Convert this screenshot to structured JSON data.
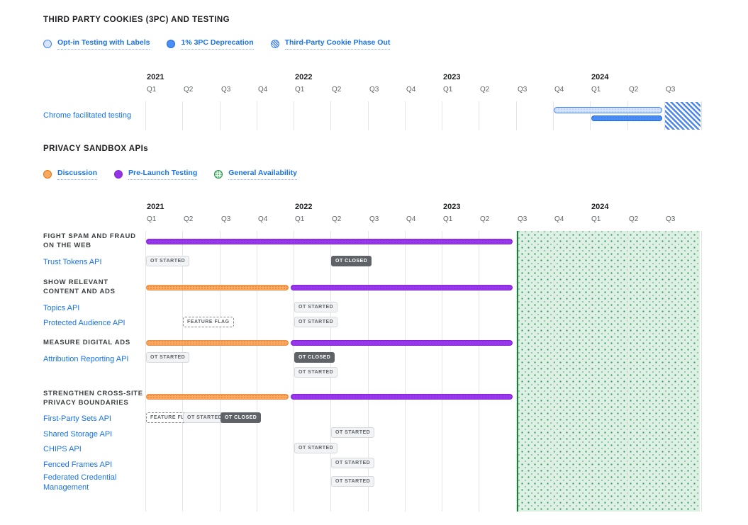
{
  "section1": {
    "title": "THIRD PARTY COOKIES (3PC) AND TESTING",
    "legend": [
      {
        "label": "Opt-in Testing with Labels",
        "style": "outline-blue"
      },
      {
        "label": "1% 3PC Deprecation",
        "style": "solid-blue"
      },
      {
        "label": "Third-Party Cookie Phase Out",
        "style": "hatched-blue"
      }
    ]
  },
  "section2": {
    "title": "PRIVACY SANDBOX APIs",
    "legend": [
      {
        "label": "Discussion",
        "style": "outline-orange"
      },
      {
        "label": "Pre-Launch Testing",
        "style": "solid-purple"
      },
      {
        "label": "General Availability",
        "style": "dotted-green"
      }
    ]
  },
  "colors": {
    "link_blue": "#1a73e8",
    "bar_blue": "#4285f4",
    "bar_light_blue": "#d6e4fc",
    "bar_orange": "#e8710a",
    "bar_purple": "#9334e6",
    "ga_green": "#188038",
    "badge_gray_bg": "#f1f3f4",
    "badge_dark_bg": "#5f6368",
    "text_dark": "#202124",
    "text_gray": "#5f6368"
  },
  "chart_data": [
    {
      "type": "gantt",
      "title": "THIRD PARTY COOKIES (3PC) AND TESTING",
      "x": {
        "unit": "quarter",
        "range": [
          "2021 Q1",
          "2024 Q3"
        ],
        "years": [
          {
            "label": "2021",
            "quarters": [
              "Q1",
              "Q2",
              "Q3",
              "Q4"
            ]
          },
          {
            "label": "2022",
            "quarters": [
              "Q1",
              "Q2",
              "Q3",
              "Q4"
            ]
          },
          {
            "label": "2023",
            "quarters": [
              "Q1",
              "Q2",
              "Q3",
              "Q4"
            ]
          },
          {
            "label": "2024",
            "quarters": [
              "Q1",
              "Q2",
              "Q3"
            ]
          }
        ]
      },
      "rows": [
        {
          "label": "Chrome facilitated testing",
          "bars": [
            {
              "series": "Opt-in Testing with Labels",
              "start": "2023 Q4",
              "end": "2024 Q2",
              "style": "outline-blue"
            },
            {
              "series": "1% 3PC Deprecation",
              "start": "2024 Q1",
              "end": "2024 Q2",
              "style": "solid-blue"
            },
            {
              "series": "Third-Party Cookie Phase Out",
              "start": "2024 Q3",
              "end": "2024 Q3",
              "style": "hatched-blue"
            }
          ]
        }
      ]
    },
    {
      "type": "gantt",
      "title": "PRIVACY SANDBOX APIs",
      "x": {
        "unit": "quarter",
        "range": [
          "2021 Q1",
          "2024 Q3"
        ],
        "years": [
          {
            "label": "2021",
            "quarters": [
              "Q1",
              "Q2",
              "Q3",
              "Q4"
            ]
          },
          {
            "label": "2022",
            "quarters": [
              "Q1",
              "Q2",
              "Q3",
              "Q4"
            ]
          },
          {
            "label": "2023",
            "quarters": [
              "Q1",
              "Q2",
              "Q3",
              "Q4"
            ]
          },
          {
            "label": "2024",
            "quarters": [
              "Q1",
              "Q2",
              "Q3"
            ]
          }
        ]
      },
      "ga_region": {
        "series": "General Availability",
        "start": "2023 Q3",
        "end": "2024 Q3",
        "style": "dotted-green"
      },
      "groups": [
        {
          "label_lines": [
            "FIGHT SPAM AND FRAUD",
            "ON THE WEB"
          ],
          "bars": [
            {
              "series": "Pre-Launch Testing",
              "start": "2021 Q1",
              "end": "2023 Q2",
              "style": "solid-purple"
            }
          ],
          "apis": [
            {
              "label": "Trust Tokens API",
              "badges": [
                {
                  "text": "OT STARTED",
                  "style": "light",
                  "at": "2021 Q1",
                  "line": 0
                },
                {
                  "text": "OT CLOSED",
                  "style": "dark",
                  "at": "2022 Q2",
                  "line": 0
                }
              ]
            }
          ]
        },
        {
          "label_lines": [
            "SHOW RELEVANT",
            "CONTENT AND ADS"
          ],
          "bars": [
            {
              "series": "Discussion",
              "start": "2021 Q1",
              "end": "2021 Q4",
              "style": "outline-orange"
            },
            {
              "series": "Pre-Launch Testing",
              "start": "2022 Q1",
              "end": "2023 Q2",
              "style": "solid-purple"
            }
          ],
          "apis": [
            {
              "label": "Topics API",
              "badges": [
                {
                  "text": "OT STARTED",
                  "style": "light",
                  "at": "2022 Q1",
                  "line": 0
                }
              ]
            },
            {
              "label": "Protected Audience API",
              "badges": [
                {
                  "text": "FEATURE FLAG",
                  "style": "dashed",
                  "at": "2021 Q2",
                  "line": 0
                },
                {
                  "text": "OT STARTED",
                  "style": "light",
                  "at": "2022 Q1",
                  "line": 0
                }
              ]
            }
          ]
        },
        {
          "label_lines": [
            "MEASURE DIGITAL ADS"
          ],
          "bars": [
            {
              "series": "Discussion",
              "start": "2021 Q1",
              "end": "2021 Q4",
              "style": "outline-orange"
            },
            {
              "series": "Pre-Launch Testing",
              "start": "2022 Q1",
              "end": "2023 Q2",
              "style": "solid-purple"
            }
          ],
          "apis": [
            {
              "label": "Attribution Reporting API",
              "badges": [
                {
                  "text": "OT STARTED",
                  "style": "light",
                  "at": "2021 Q1",
                  "line": 0
                },
                {
                  "text": "OT CLOSED",
                  "style": "dark",
                  "at": "2022 Q1",
                  "line": 0
                },
                {
                  "text": "OT STARTED",
                  "style": "light",
                  "at": "2022 Q1",
                  "line": 1
                }
              ]
            }
          ]
        },
        {
          "label_lines": [
            "STRENGTHEN CROSS-SITE",
            "PRIVACY BOUNDARIES"
          ],
          "bars": [
            {
              "series": "Discussion",
              "start": "2021 Q1",
              "end": "2021 Q4",
              "style": "outline-orange"
            },
            {
              "series": "Pre-Launch Testing",
              "start": "2022 Q1",
              "end": "2023 Q2",
              "style": "solid-purple"
            }
          ],
          "apis": [
            {
              "label": "First-Party Sets API",
              "badges": [
                {
                  "text": "FEATURE FLAG",
                  "style": "dashed",
                  "at": "2021 Q1",
                  "line": 0
                },
                {
                  "text": "OT STARTED",
                  "style": "light",
                  "at": "2021 Q2",
                  "line": 0
                },
                {
                  "text": "OT CLOSED",
                  "style": "dark",
                  "at": "2021 Q3",
                  "line": 0
                }
              ]
            },
            {
              "label": "Shared Storage API",
              "badges": [
                {
                  "text": "OT STARTED",
                  "style": "light",
                  "at": "2022 Q2",
                  "line": 0
                }
              ]
            },
            {
              "label": "CHIPS API",
              "badges": [
                {
                  "text": "OT STARTED",
                  "style": "light",
                  "at": "2022 Q1",
                  "line": 0
                }
              ]
            },
            {
              "label": "Fenced Frames API",
              "badges": [
                {
                  "text": "OT STARTED",
                  "style": "light",
                  "at": "2022 Q2",
                  "line": 0
                }
              ]
            },
            {
              "label": "Federated Credential Management",
              "badges": [
                {
                  "text": "OT STARTED",
                  "style": "light",
                  "at": "2022 Q2",
                  "line": 0
                }
              ]
            }
          ]
        }
      ]
    }
  ]
}
